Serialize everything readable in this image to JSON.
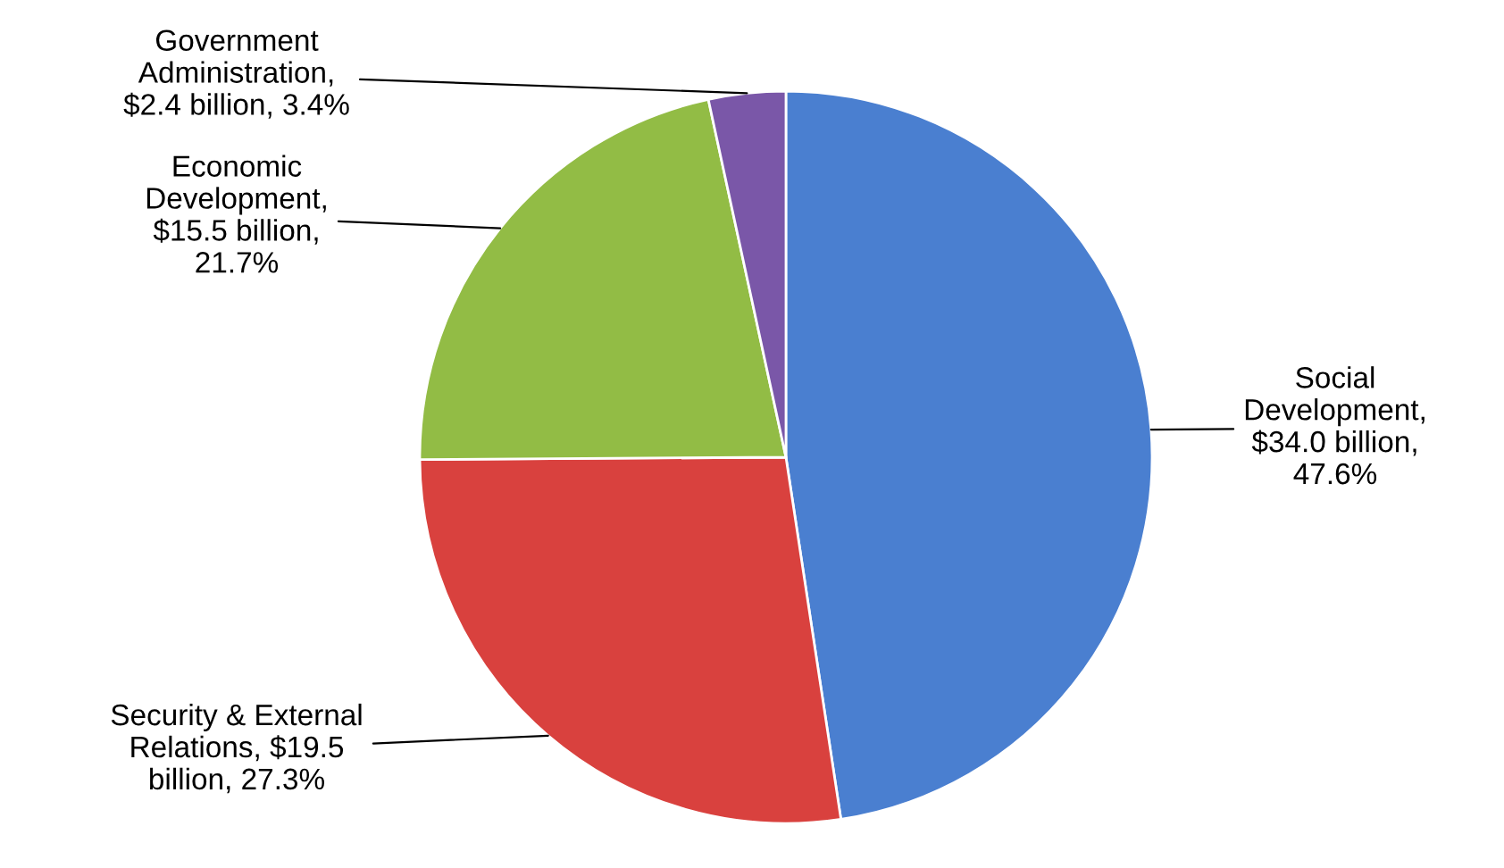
{
  "chart_data": {
    "type": "pie",
    "categories": [
      "Social\nDevelopment,\n$34.0 billion,\n47.6%",
      "Security & External\nRelations, $19.5\nbillion, 27.3%",
      "Economic\nDevelopment,\n$15.5 billion,\n21.7%",
      "Government\nAdministration,\n$2.4 billion, 3.4%"
    ],
    "values": [
      47.6,
      27.3,
      21.7,
      3.4
    ],
    "colors": [
      "#4a7fd0",
      "#d9413e",
      "#92bc45",
      "#7a57a8"
    ]
  }
}
